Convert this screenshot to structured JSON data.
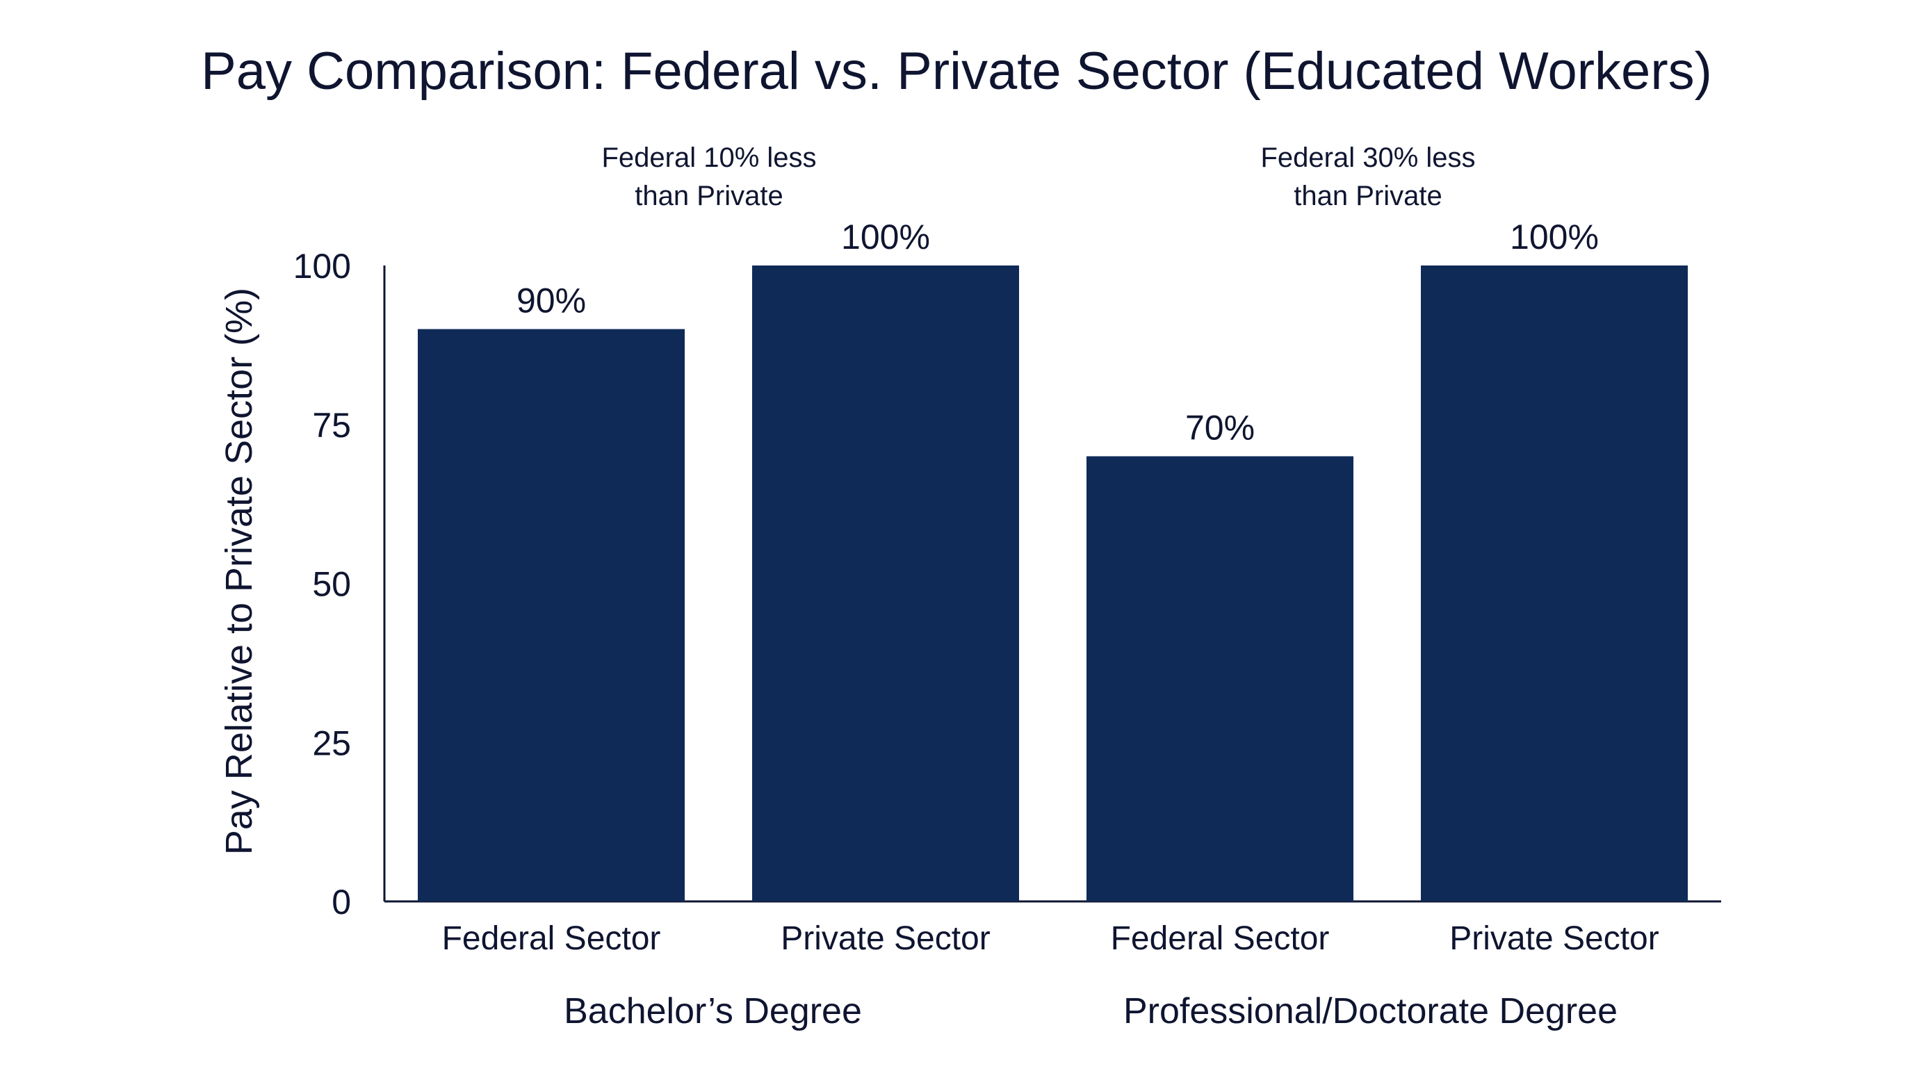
{
  "chart_data": {
    "type": "bar",
    "title": "Pay Comparison: Federal vs. Private Sector (Educated Workers)",
    "ylabel": "Pay Relative to Private Sector (%)",
    "xlabel": "",
    "ylim": [
      0,
      100
    ],
    "yticks": [
      0,
      25,
      50,
      75,
      100
    ],
    "grid": false,
    "bar_color": "#0f2a57",
    "groups": [
      {
        "name": "Bachelor’s Degree",
        "annotation": [
          "Federal 10% less",
          "than Private"
        ],
        "bars": [
          {
            "category": "Federal Sector",
            "value": 90,
            "label": "90%"
          },
          {
            "category": "Private Sector",
            "value": 100,
            "label": "100%"
          }
        ]
      },
      {
        "name": "Professional/Doctorate Degree",
        "annotation": [
          "Federal 30% less",
          "than Private"
        ],
        "bars": [
          {
            "category": "Federal Sector",
            "value": 70,
            "label": "70%"
          },
          {
            "category": "Private Sector",
            "value": 100,
            "label": "100%"
          }
        ]
      }
    ]
  }
}
